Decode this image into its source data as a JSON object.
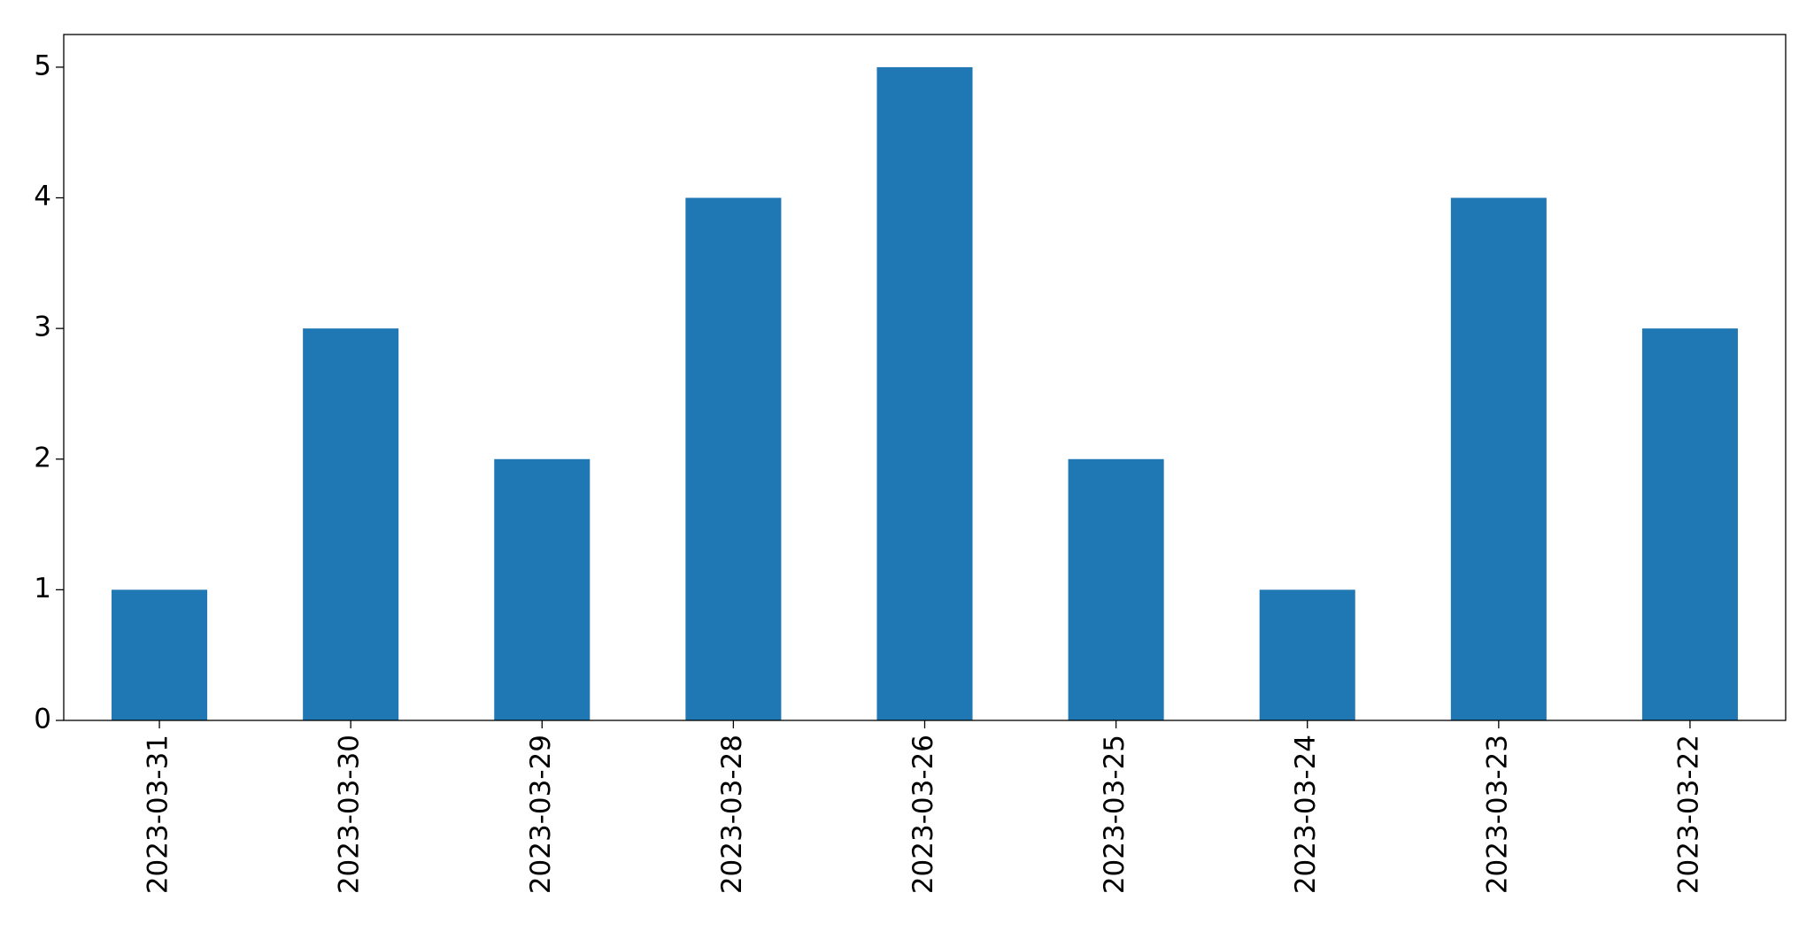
{
  "chart_data": {
    "type": "bar",
    "categories": [
      "2023-03-31",
      "2023-03-30",
      "2023-03-29",
      "2023-03-28",
      "2023-03-26",
      "2023-03-25",
      "2023-03-24",
      "2023-03-23",
      "2023-03-22"
    ],
    "values": [
      1,
      3,
      2,
      4,
      5,
      2,
      1,
      4,
      3
    ],
    "color": "#1f77b4",
    "ylim": [
      0,
      5.25
    ],
    "yticks": [
      0,
      1,
      2,
      3,
      4,
      5
    ],
    "grid": false
  }
}
